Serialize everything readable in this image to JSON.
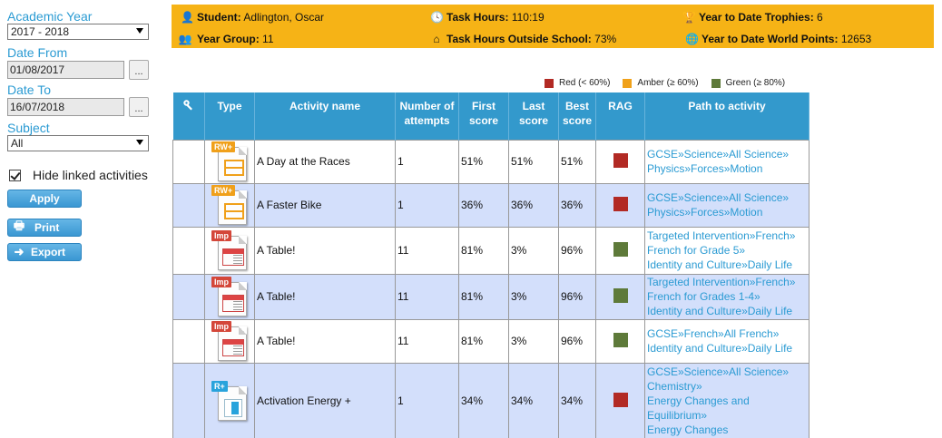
{
  "filters": {
    "academic_year": {
      "label": "Academic Year",
      "value": "2017 - 2018"
    },
    "date_from": {
      "label": "Date From",
      "value": "01/08/2017",
      "picker_label": "..."
    },
    "date_to": {
      "label": "Date To",
      "value": "16/07/2018",
      "picker_label": "..."
    },
    "subject": {
      "label": "Subject",
      "value": "All"
    },
    "hide_linked": {
      "label": "Hide linked activities",
      "checked": true
    },
    "apply_label": "Apply",
    "print_label": "Print",
    "export_label": "Export"
  },
  "summary": {
    "student_label": "Student:",
    "student_value": "Adlington, Oscar",
    "task_hours_label": "Task Hours:",
    "task_hours_value": "110:19",
    "trophies_label": "Year to Date Trophies:",
    "trophies_value": "6",
    "year_group_label": "Year Group:",
    "year_group_value": "11",
    "outside_label": "Task Hours Outside School:",
    "outside_value": "73%",
    "world_points_label": "Year to Date World Points:",
    "world_points_value": "12653"
  },
  "legend": [
    {
      "label": "Red (< 60%)",
      "color": "#b22a24"
    },
    {
      "label": "Amber (≥ 60%)",
      "color": "#f0a11a"
    },
    {
      "label": "Green (≥ 80%)",
      "color": "#5e7a3a"
    }
  ],
  "table": {
    "headers": {
      "key_icon": "key-icon",
      "type": "Type",
      "activity": "Activity name",
      "attempts_1": "Number of",
      "attempts_2": "attempts",
      "first_1": "First",
      "first_2": "score",
      "last_1": "Last",
      "last_2": "score",
      "best_1": "Best",
      "best_2": "score",
      "rag": "RAG",
      "path": "Path to activity"
    },
    "rows": [
      {
        "type_tag": "RW+",
        "name": "A Day at the Races",
        "attempts": "1",
        "first": "51%",
        "last": "51%",
        "best": "51%",
        "rag_color": "#b22a24",
        "path_1": "GCSE»Science»All Science»",
        "path_2": "Physics»Forces»Motion",
        "path_3": "",
        "path_4": "",
        "path_5": ""
      },
      {
        "type_tag": "RW+",
        "name": "A Faster Bike",
        "attempts": "1",
        "first": "36%",
        "last": "36%",
        "best": "36%",
        "rag_color": "#b22a24",
        "path_1": "GCSE»Science»All Science»",
        "path_2": "Physics»Forces»Motion",
        "path_3": "",
        "path_4": "",
        "path_5": ""
      },
      {
        "type_tag": "Imp",
        "name": "A Table!",
        "attempts": "11",
        "first": "81%",
        "last": "3%",
        "best": "96%",
        "rag_color": "#5e7a3a",
        "path_1": "Targeted Intervention»French»",
        "path_2": "French for Grade 5»",
        "path_3": "Identity and Culture»Daily Life",
        "path_4": "",
        "path_5": ""
      },
      {
        "type_tag": "Imp",
        "name": "A Table!",
        "attempts": "11",
        "first": "81%",
        "last": "3%",
        "best": "96%",
        "rag_color": "#5e7a3a",
        "path_1": "Targeted Intervention»French»",
        "path_2": "French for Grades 1-4»",
        "path_3": "Identity and Culture»Daily Life",
        "path_4": "",
        "path_5": ""
      },
      {
        "type_tag": "Imp",
        "name": "A Table!",
        "attempts": "11",
        "first": "81%",
        "last": "3%",
        "best": "96%",
        "rag_color": "#5e7a3a",
        "path_1": "GCSE»French»All French»",
        "path_2": "Identity and Culture»Daily Life",
        "path_3": "",
        "path_4": "",
        "path_5": ""
      },
      {
        "type_tag": "R+",
        "name": "Activation Energy +",
        "attempts": "1",
        "first": "34%",
        "last": "34%",
        "best": "34%",
        "rag_color": "#b22a24",
        "path_1": "GCSE»Science»All Science»",
        "path_2": "Chemistry»",
        "path_3": "Energy Changes and",
        "path_4": "Equilibrium»",
        "path_5": "Energy Changes"
      }
    ]
  }
}
